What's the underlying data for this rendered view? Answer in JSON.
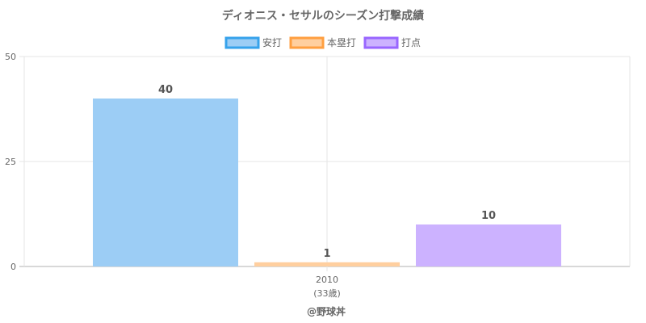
{
  "chart_data": {
    "type": "bar",
    "title": "ディオニス・セサルのシーズン打撃成績",
    "categories": [
      "2010"
    ],
    "category_sublabels": [
      "(33歳)"
    ],
    "series": [
      {
        "name": "安打",
        "values": [
          40
        ],
        "fill": "#9ccdf5",
        "stroke": "#36a2eb"
      },
      {
        "name": "本塁打",
        "values": [
          1
        ],
        "fill": "#ffcf9f",
        "stroke": "#ff9f40"
      },
      {
        "name": "打点",
        "values": [
          10
        ],
        "fill": "#ccb2ff",
        "stroke": "#9966ff"
      }
    ],
    "ylim": [
      0,
      50
    ],
    "yticks": [
      0,
      25,
      50
    ],
    "grid": true,
    "legend": "top"
  },
  "credit": "@野球丼"
}
